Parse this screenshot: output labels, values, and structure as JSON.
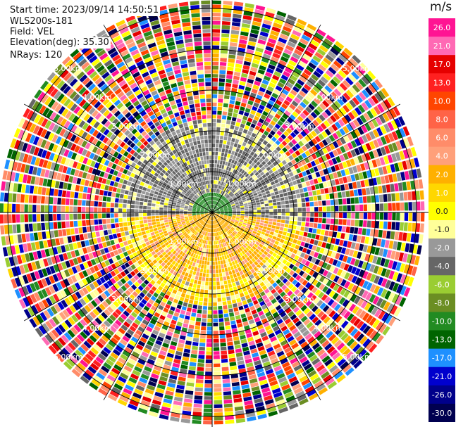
{
  "header": {
    "start_time": "Start time: 2023/09/14 14:50:51",
    "instrument": "WLS200s-181",
    "field": "Field: VEL",
    "elevation": "Elevation(deg): 35.30",
    "nrays": "NRays: 120"
  },
  "colorbar": {
    "unit": "m/s",
    "ticks": [
      "26.0",
      "21.0",
      "17.0",
      "13.0",
      "10.0",
      "8.0",
      "6.0",
      "4.0",
      "2.0",
      "1.0",
      "0.0",
      "-1.0",
      "-2.0",
      "-4.0",
      "-6.0",
      "-8.0",
      "-10.0",
      "-13.0",
      "-17.0",
      "-21.0",
      "-26.0",
      "-30.0"
    ],
    "colors": [
      "#ff1493",
      "#ff69b4",
      "#e60000",
      "#ff2020",
      "#ff4500",
      "#ff6347",
      "#ff8c69",
      "#ffa07a",
      "#ffb000",
      "#ffd700",
      "#ffff00",
      "#ffff99",
      "#999999",
      "#666666",
      "#9acd32",
      "#6b8e23",
      "#228b22",
      "#006400",
      "#1e90ff",
      "#0000cd",
      "#00008b",
      "#000050"
    ]
  },
  "chart_data": {
    "type": "ppi",
    "title": "",
    "range_rings": [
      "1.00km",
      "2.00km",
      "3.00km",
      "4.00km",
      "5.00km"
    ],
    "ring_label_text": "km",
    "ray_count": 120,
    "azimuth_spokes_deg": [
      0,
      30,
      60,
      90,
      120,
      150,
      180,
      210,
      240,
      270,
      300,
      330
    ],
    "velocity_range": [
      -30.0,
      26.0
    ]
  }
}
